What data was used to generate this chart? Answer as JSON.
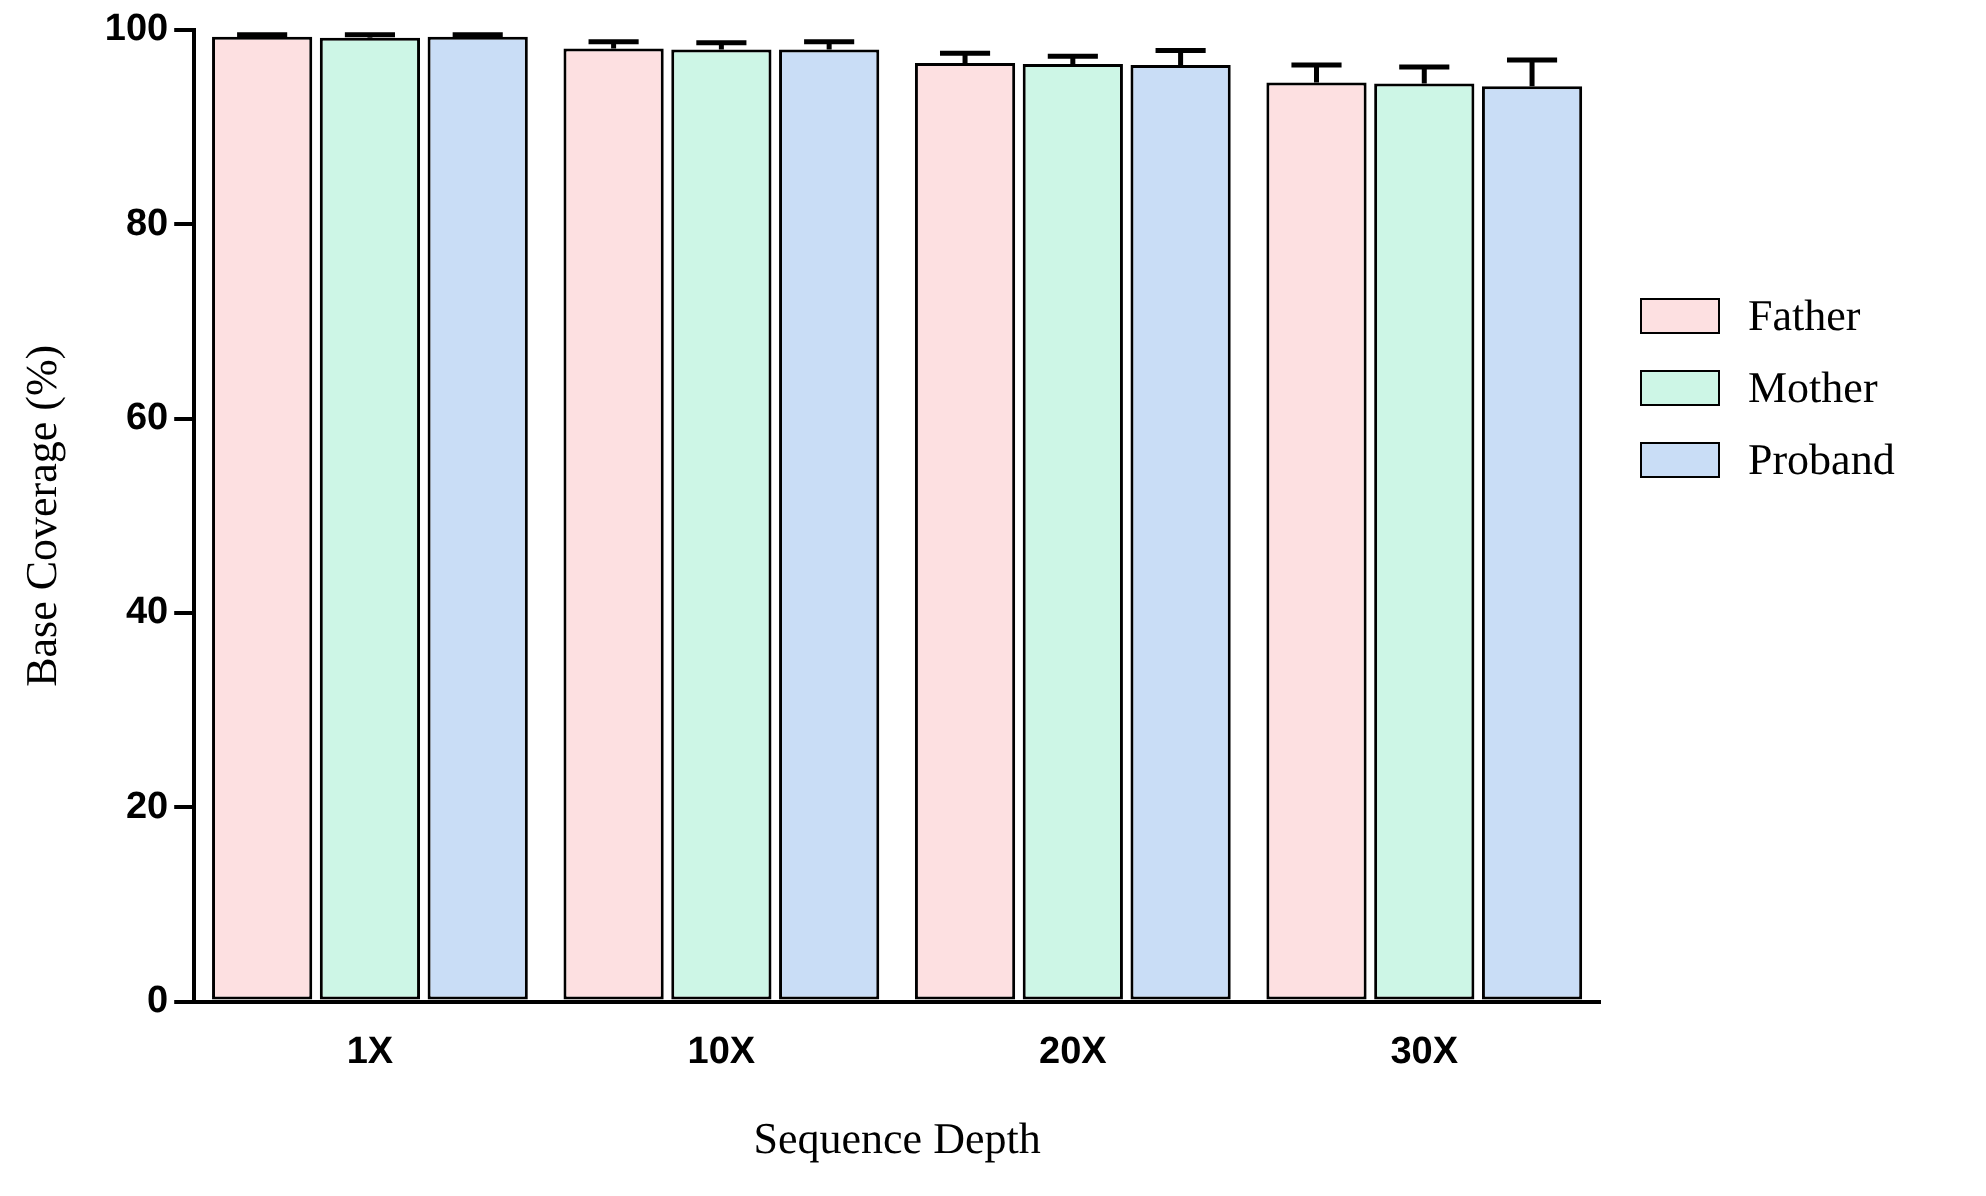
{
  "chart_data": {
    "type": "bar",
    "xlabel": "Sequence Depth",
    "ylabel": "Base Coverage (%)",
    "categories": [
      "1X",
      "10X",
      "20X",
      "30X"
    ],
    "series": [
      {
        "name": "Father",
        "color": "#fde0e1",
        "values": [
          99.3,
          98.1,
          96.6,
          94.6
        ],
        "errors": [
          [
            99.3,
            99.5
          ],
          [
            98.1,
            98.8
          ],
          [
            96.6,
            97.6
          ],
          [
            94.6,
            96.4
          ]
        ]
      },
      {
        "name": "Mother",
        "color": "#cdf6e6",
        "values": [
          99.2,
          98.0,
          96.5,
          94.5
        ],
        "errors": [
          [
            99.2,
            99.5
          ],
          [
            98.0,
            98.7
          ],
          [
            96.5,
            97.3
          ],
          [
            94.5,
            96.2
          ]
        ]
      },
      {
        "name": "Proband",
        "color": "#c9ddf6",
        "values": [
          99.3,
          98.0,
          96.4,
          94.2
        ],
        "errors": [
          [
            99.3,
            99.5
          ],
          [
            98.0,
            98.8
          ],
          [
            96.4,
            97.9
          ],
          [
            94.2,
            96.9
          ]
        ]
      }
    ],
    "ylim": [
      0,
      100
    ],
    "yticks": [
      0,
      20,
      40,
      60,
      80,
      100
    ],
    "grid": false,
    "legend": "right"
  }
}
